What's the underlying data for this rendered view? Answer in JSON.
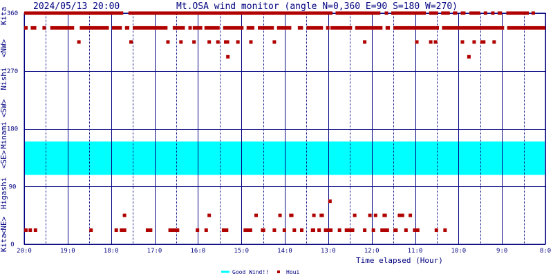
{
  "header": {
    "timestamp": "2024/05/13 20:00",
    "title": "Mt.OSA wind monitor (angle N=0,360 E=90 S=180 W=270)"
  },
  "colors": {
    "frame": "#000080",
    "good_wind_band": "#00ffff",
    "houi_marker": "#b00000",
    "background": "#ffffff"
  },
  "chart_data": {
    "type": "scatter",
    "title": "Mt.OSA wind monitor (angle N=0,360 E=90 S=180 W=270)",
    "xlabel": "Time elapsed (Hour)",
    "ylabel_segments": [
      "Kita",
      "<NE>",
      "Higashi",
      "<SE>",
      "Minami",
      "<SW>",
      "Nishi",
      "<NW>",
      "Kita"
    ],
    "x_unit": "hours elapsed since 20:00",
    "xlim": [
      0,
      12
    ],
    "x_tick_labels": [
      "20:0",
      "19:0",
      "18:0",
      "17:0",
      "16:0",
      "15:0",
      "14:0",
      "13:0",
      "12:0",
      "11:0",
      "10:0",
      "9:0",
      "8:0"
    ],
    "ylim": [
      0,
      360
    ],
    "y_ticks": [
      0,
      90,
      180,
      270,
      360
    ],
    "y_tick_labels": [
      "0",
      "90",
      "180",
      "270",
      "360"
    ],
    "grid": true,
    "legend_position": "bottom-center",
    "good_wind": {
      "label": "Good Wind!!",
      "range": [
        108,
        160
      ]
    },
    "series": [
      {
        "name": "Houi",
        "row_levels": {
          "r360": 360,
          "r337": 337,
          "r315": 315,
          "r292": 292,
          "r67": 67,
          "r45": 45,
          "r22": 22
        },
        "runs": [
          {
            "y": "r360",
            "ranges": [
              [
                0.0,
                2.28
              ],
              [
                2.4,
                7.1
              ],
              [
                7.17,
                8.2
              ],
              [
                8.3,
                8.37
              ],
              [
                8.45,
                9.25
              ],
              [
                9.32,
                9.53
              ],
              [
                9.6,
                9.8
              ],
              [
                9.87,
                9.97
              ],
              [
                10.05,
                10.16
              ],
              [
                10.25,
                10.5
              ],
              [
                10.58,
                10.64
              ],
              [
                10.75,
                10.82
              ],
              [
                10.9,
                11.0
              ],
              [
                11.1,
                11.62
              ],
              [
                11.68,
                11.72
              ]
            ]
          },
          {
            "y": "r337",
            "ranges": [
              [
                0.0,
                0.08
              ],
              [
                0.15,
                0.28
              ],
              [
                0.42,
                0.47
              ],
              [
                0.6,
                1.15
              ],
              [
                1.28,
                1.95
              ],
              [
                2.02,
                2.25
              ],
              [
                2.32,
                2.42
              ],
              [
                2.5,
                3.3
              ],
              [
                3.42,
                3.7
              ],
              [
                3.78,
                3.8
              ],
              [
                3.88,
                4.1
              ],
              [
                4.15,
                4.5
              ],
              [
                4.58,
                5.05
              ],
              [
                5.12,
                5.3
              ],
              [
                5.38,
                5.75
              ],
              [
                5.82,
                6.15
              ],
              [
                6.3,
                6.42
              ],
              [
                6.5,
                6.88
              ],
              [
                6.95,
                7.0
              ],
              [
                7.05,
                7.55
              ],
              [
                7.62,
                8.25
              ],
              [
                8.32,
                8.42
              ],
              [
                8.5,
                9.55
              ],
              [
                9.62,
                11.05
              ],
              [
                11.12,
                12.0
              ]
            ]
          },
          {
            "y": "r315",
            "ranges": [
              [
                1.22,
                1.28
              ],
              [
                2.42,
                2.47
              ],
              [
                3.27,
                3.32
              ],
              [
                3.57,
                3.62
              ],
              [
                3.87,
                3.92
              ],
              [
                4.22,
                4.27
              ],
              [
                4.42,
                4.47
              ],
              [
                4.6,
                4.72
              ],
              [
                4.88,
                4.93
              ],
              [
                5.18,
                5.23
              ],
              [
                5.72,
                5.77
              ],
              [
                7.8,
                7.85
              ],
              [
                9.0,
                9.05
              ],
              [
                9.32,
                9.37
              ],
              [
                9.43,
                9.48
              ],
              [
                10.05,
                10.1
              ],
              [
                10.32,
                10.37
              ],
              [
                10.5,
                10.62
              ],
              [
                10.78,
                10.83
              ]
            ]
          },
          {
            "y": "r292",
            "ranges": [
              [
                4.65,
                4.7
              ],
              [
                10.2,
                10.25
              ]
            ]
          },
          {
            "y": "r67",
            "ranges": [
              [
                7.0,
                7.05
              ]
            ]
          },
          {
            "y": "r45",
            "ranges": [
              [
                2.27,
                2.32
              ],
              [
                4.22,
                4.27
              ],
              [
                5.3,
                5.35
              ],
              [
                5.85,
                5.9
              ],
              [
                6.1,
                6.2
              ],
              [
                6.63,
                6.68
              ],
              [
                6.8,
                6.9
              ],
              [
                7.57,
                7.62
              ],
              [
                7.92,
                7.97
              ],
              [
                8.05,
                8.1
              ],
              [
                8.25,
                8.35
              ],
              [
                8.6,
                8.75
              ],
              [
                8.85,
                8.9
              ]
            ]
          },
          {
            "y": "r22",
            "ranges": [
              [
                0.0,
                0.05
              ],
              [
                0.1,
                0.15
              ],
              [
                0.22,
                0.27
              ],
              [
                1.5,
                1.55
              ],
              [
                2.08,
                2.12
              ],
              [
                2.2,
                2.35
              ],
              [
                2.8,
                2.95
              ],
              [
                3.32,
                3.57
              ],
              [
                3.95,
                4.0
              ],
              [
                4.15,
                4.2
              ],
              [
                4.55,
                4.7
              ],
              [
                5.05,
                5.25
              ],
              [
                5.45,
                5.55
              ],
              [
                5.72,
                5.8
              ],
              [
                5.95,
                6.0
              ],
              [
                6.18,
                6.23
              ],
              [
                6.35,
                6.42
              ],
              [
                6.6,
                6.7
              ],
              [
                6.75,
                6.8
              ],
              [
                6.9,
                7.1
              ],
              [
                7.22,
                7.28
              ],
              [
                7.38,
                7.6
              ],
              [
                7.8,
                7.85
              ],
              [
                8.0,
                8.05
              ],
              [
                8.2,
                8.4
              ],
              [
                8.5,
                8.6
              ],
              [
                8.75,
                8.8
              ],
              [
                8.95,
                9.1
              ],
              [
                9.45,
                9.5
              ],
              [
                9.65,
                9.7
              ]
            ]
          }
        ]
      }
    ]
  },
  "legend": {
    "good_wind_label": "Good Wind!!",
    "houi_label": "Houi"
  }
}
